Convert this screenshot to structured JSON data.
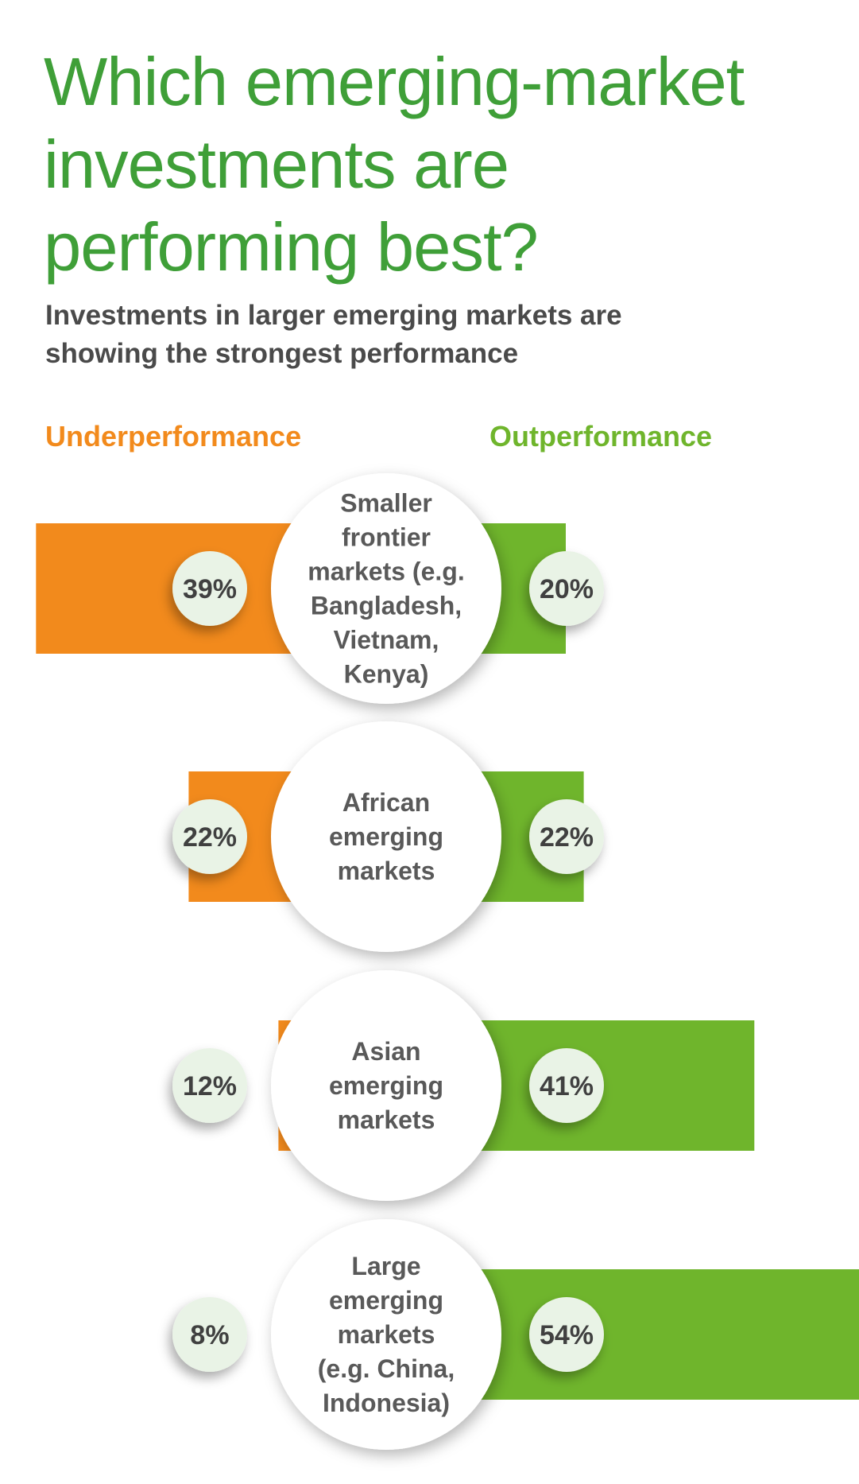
{
  "title": "Which emerging-market\ninvestments are\nperforming best?",
  "subtitle": "Investments in larger emerging markets are\nshowing the strongest performance",
  "legend": {
    "underperformance": "Underperformance",
    "outperformance": "Outperformance"
  },
  "colors": {
    "title": "#3f9f38",
    "underperformance": "#f28a1c",
    "outperformance": "#6fb52c",
    "badge": "#e9f3e6",
    "text": "#4a4a4a"
  },
  "chart_data": {
    "type": "bar",
    "title": "Which emerging-market investments are performing best?",
    "subtitle": "Investments in larger emerging markets are showing the strongest performance",
    "categories": [
      "Smaller frontier markets (e.g. Bangladesh, Vietnam, Kenya)",
      "African emerging markets",
      "Asian emerging markets",
      "Large emerging markets (e.g. China, Indonesia)"
    ],
    "category_lines": [
      [
        "Smaller",
        "frontier",
        "markets (e.g.",
        "Bangladesh,",
        "Vietnam,",
        "Kenya)"
      ],
      [
        "African",
        "emerging",
        "markets"
      ],
      [
        "Asian",
        "emerging",
        "markets"
      ],
      [
        "Large",
        "emerging",
        "markets",
        "(e.g. China,",
        "Indonesia)"
      ]
    ],
    "series": [
      {
        "name": "Underperformance",
        "values": [
          39,
          22,
          12,
          8
        ]
      },
      {
        "name": "Outperformance",
        "values": [
          20,
          22,
          41,
          54
        ]
      }
    ],
    "value_labels": {
      "Underperformance": [
        "39%",
        "22%",
        "12%",
        "8%"
      ],
      "Outperformance": [
        "20%",
        "22%",
        "41%",
        "54%"
      ]
    },
    "unit": "%",
    "legend_position": "top",
    "orientation": "diverging-horizontal"
  }
}
